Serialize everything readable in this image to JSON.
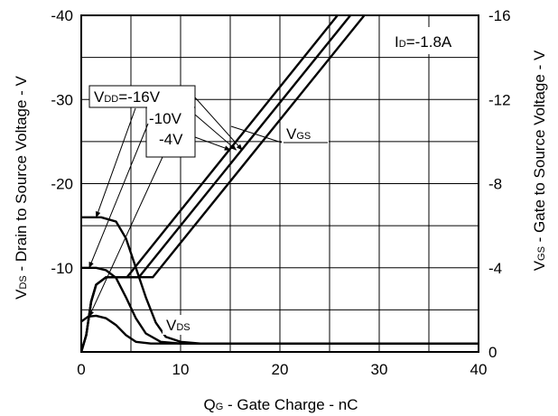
{
  "chart_data": {
    "type": "line",
    "annotation": {
      "prefix": "I",
      "sub": "D",
      "value": "=-1.8A"
    },
    "xlabel": {
      "main": "Q",
      "sub": "G",
      "rest": " -  Gate Charge - nC"
    },
    "ylabel_left": {
      "main": "V",
      "sub": "DS",
      "rest": " -  Drain to Source Voltage - V"
    },
    "ylabel_right": {
      "main": "V",
      "sub": "GS",
      "rest": " - Gate to Source Voltage - V"
    },
    "xlim": [
      0,
      40
    ],
    "ylim_left": [
      0,
      -40
    ],
    "ylim_right": [
      0,
      -16
    ],
    "grid": true,
    "x_ticks": [
      "0",
      "10",
      "20",
      "30",
      "40"
    ],
    "y_left_ticks": [
      "",
      "-10",
      "-20",
      "-30",
      "-40"
    ],
    "y_right_ticks": [
      "0",
      "-4",
      "-8",
      "-12",
      "-16"
    ],
    "legend_box": {
      "line1": {
        "main": "V",
        "sub": "DD",
        "value": "=-16V"
      },
      "line2": "-10V",
      "line3": "-4V"
    },
    "label_vgs": {
      "main": "V",
      "sub": "GS"
    },
    "label_vds": {
      "main": "V",
      "sub": "DS"
    },
    "series": [
      {
        "group": "VDS",
        "vdd": "-16V",
        "axis": "left",
        "x": [
          0,
          2,
          3.5,
          4.5,
          5.5,
          6.5,
          7.5,
          8.5,
          10,
          12,
          40
        ],
        "y": [
          -16,
          -16,
          -15.5,
          -13.5,
          -10,
          -6.5,
          -3.5,
          -1.8,
          -1.2,
          -1.0,
          -1.0
        ]
      },
      {
        "group": "VDS",
        "vdd": "-10V",
        "axis": "left",
        "x": [
          0,
          1.5,
          2.5,
          3.5,
          4.5,
          5.5,
          6.5,
          8,
          10,
          40
        ],
        "y": [
          -10,
          -10,
          -9.7,
          -8.8,
          -6.5,
          -4,
          -2.2,
          -1.2,
          -1.0,
          -1.0
        ]
      },
      {
        "group": "VDS",
        "vdd": "-4V",
        "axis": "left",
        "x": [
          0,
          0.7,
          1.5,
          2.5,
          3.5,
          4.5,
          5.5,
          7,
          9,
          40
        ],
        "y": [
          -3.6,
          -4.2,
          -4.3,
          -4.0,
          -3.2,
          -2.0,
          -1.2,
          -1.0,
          -1.0,
          -1.0
        ]
      },
      {
        "group": "VGS",
        "vdd": "-16V",
        "axis": "right",
        "x": [
          0,
          0.5,
          1,
          1.5,
          2.5,
          3.5,
          7.2,
          28.5
        ],
        "y": [
          0,
          -0.8,
          -2.4,
          -3.2,
          -3.55,
          -3.55,
          -3.55,
          -16
        ]
      },
      {
        "group": "VGS",
        "vdd": "-10V",
        "axis": "right",
        "x": [
          0,
          0.5,
          1,
          1.5,
          2.5,
          3.5,
          5.8,
          27.1
        ],
        "y": [
          0,
          -0.8,
          -2.4,
          -3.2,
          -3.55,
          -3.55,
          -3.55,
          -16
        ]
      },
      {
        "group": "VGS",
        "vdd": "-4V",
        "axis": "right",
        "x": [
          0,
          0.5,
          1,
          1.5,
          2.5,
          3.5,
          4.6,
          25.8
        ],
        "y": [
          0,
          -0.8,
          -2.4,
          -3.2,
          -3.55,
          -3.55,
          -3.55,
          -16
        ]
      }
    ],
    "callouts": [
      {
        "target": "VDS -16V",
        "at": [
          1.5,
          -16
        ]
      },
      {
        "target": "VDS -10V",
        "at": [
          0.8,
          -10
        ]
      },
      {
        "target": "VDS -4V",
        "at": [
          0.8,
          -4.2
        ]
      },
      {
        "target": "VGS -16V",
        "at": [
          16.2,
          -9.6
        ]
      },
      {
        "target": "VGS -10V",
        "at": [
          15.6,
          -9.6
        ]
      },
      {
        "target": "VGS -4V",
        "at": [
          15.0,
          -9.6
        ]
      }
    ]
  }
}
